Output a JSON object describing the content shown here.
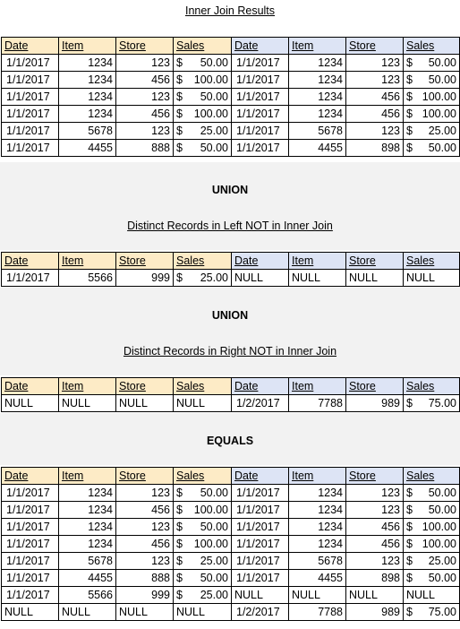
{
  "titles": {
    "inner_join": "Inner Join Results",
    "union1": "UNION",
    "left_only": "Distinct Records in Left NOT in Inner Join",
    "union2": "UNION",
    "right_only": "Distinct Records in Right NOT in Inner Join",
    "equals": "EQUALS"
  },
  "headers": [
    "Date",
    "Item",
    "Store",
    "Sales",
    "Date",
    "Item",
    "Store",
    "Sales"
  ],
  "colors": {
    "left_header": "#fdebc6",
    "right_header": "#dde4f5"
  },
  "inner_join_rows": [
    [
      "1/1/2017",
      "1234",
      "123",
      "$ 50.00",
      "1/1/2017",
      "1234",
      "123",
      "$ 50.00"
    ],
    [
      "1/1/2017",
      "1234",
      "456",
      "$ 100.00",
      "1/1/2017",
      "1234",
      "123",
      "$ 50.00"
    ],
    [
      "1/1/2017",
      "1234",
      "123",
      "$ 50.00",
      "1/1/2017",
      "1234",
      "456",
      "$ 100.00"
    ],
    [
      "1/1/2017",
      "1234",
      "456",
      "$ 100.00",
      "1/1/2017",
      "1234",
      "456",
      "$ 100.00"
    ],
    [
      "1/1/2017",
      "5678",
      "123",
      "$ 25.00",
      "1/1/2017",
      "5678",
      "123",
      "$ 25.00"
    ],
    [
      "1/1/2017",
      "4455",
      "888",
      "$ 50.00",
      "1/1/2017",
      "4455",
      "898",
      "$ 50.00"
    ]
  ],
  "left_only_rows": [
    [
      "1/1/2017",
      "5566",
      "999",
      "$ 25.00",
      "NULL",
      "NULL",
      "NULL",
      "NULL"
    ]
  ],
  "right_only_rows": [
    [
      "NULL",
      "NULL",
      "NULL",
      "NULL",
      "1/2/2017",
      "7788",
      "989",
      "$ 75.00"
    ]
  ],
  "equals_rows": [
    [
      "1/1/2017",
      "1234",
      "123",
      "$ 50.00",
      "1/1/2017",
      "1234",
      "123",
      "$ 50.00"
    ],
    [
      "1/1/2017",
      "1234",
      "456",
      "$ 100.00",
      "1/1/2017",
      "1234",
      "123",
      "$ 50.00"
    ],
    [
      "1/1/2017",
      "1234",
      "123",
      "$ 50.00",
      "1/1/2017",
      "1234",
      "456",
      "$ 100.00"
    ],
    [
      "1/1/2017",
      "1234",
      "456",
      "$ 100.00",
      "1/1/2017",
      "1234",
      "456",
      "$ 100.00"
    ],
    [
      "1/1/2017",
      "5678",
      "123",
      "$ 25.00",
      "1/1/2017",
      "5678",
      "123",
      "$ 25.00"
    ],
    [
      "1/1/2017",
      "4455",
      "888",
      "$ 50.00",
      "1/1/2017",
      "4455",
      "898",
      "$ 50.00"
    ],
    [
      "1/1/2017",
      "5566",
      "999",
      "$ 25.00",
      "NULL",
      "NULL",
      "NULL",
      "NULL"
    ],
    [
      "NULL",
      "NULL",
      "NULL",
      "NULL",
      "1/2/2017",
      "7788",
      "989",
      "$ 75.00"
    ]
  ]
}
